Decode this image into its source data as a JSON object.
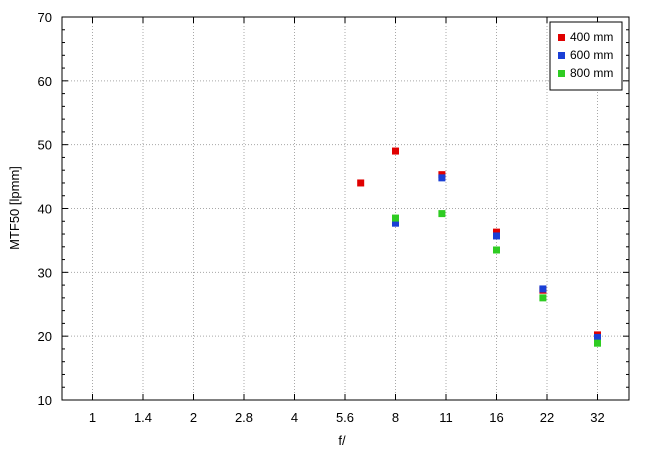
{
  "chart_data": {
    "type": "scatter",
    "title": "",
    "xlabel": "f/",
    "ylabel": "MTF50 [lpmm]",
    "x_scale": "log2",
    "x_ticks": [
      "1",
      "1.4",
      "2",
      "2.8",
      "4",
      "5.6",
      "8",
      "11",
      "16",
      "22",
      "32"
    ],
    "ylim": [
      10,
      70
    ],
    "y_ticks": [
      "10",
      "20",
      "30",
      "40",
      "50",
      "60",
      "70"
    ],
    "grid": true,
    "legend_position": "top-right",
    "series": [
      {
        "name": "400 mm",
        "color": "#e00000",
        "points": [
          {
            "x": 6.3,
            "y": 44.0
          },
          {
            "x": 8,
            "y": 49.0
          },
          {
            "x": 11,
            "y": 45.3
          },
          {
            "x": 16,
            "y": 36.3
          },
          {
            "x": 22,
            "y": 27.2
          },
          {
            "x": 32,
            "y": 20.2
          }
        ]
      },
      {
        "name": "600 mm",
        "color": "#1a3fd6",
        "points": [
          {
            "x": 8,
            "y": 37.7
          },
          {
            "x": 11,
            "y": 44.8
          },
          {
            "x": 16,
            "y": 35.7
          },
          {
            "x": 22,
            "y": 27.4
          },
          {
            "x": 32,
            "y": 19.8
          }
        ]
      },
      {
        "name": "800 mm",
        "color": "#2ecc22",
        "points": [
          {
            "x": 8,
            "y": 38.5
          },
          {
            "x": 11,
            "y": 39.2
          },
          {
            "x": 16,
            "y": 33.5
          },
          {
            "x": 22,
            "y": 26.0
          },
          {
            "x": 32,
            "y": 18.9
          }
        ]
      }
    ]
  }
}
